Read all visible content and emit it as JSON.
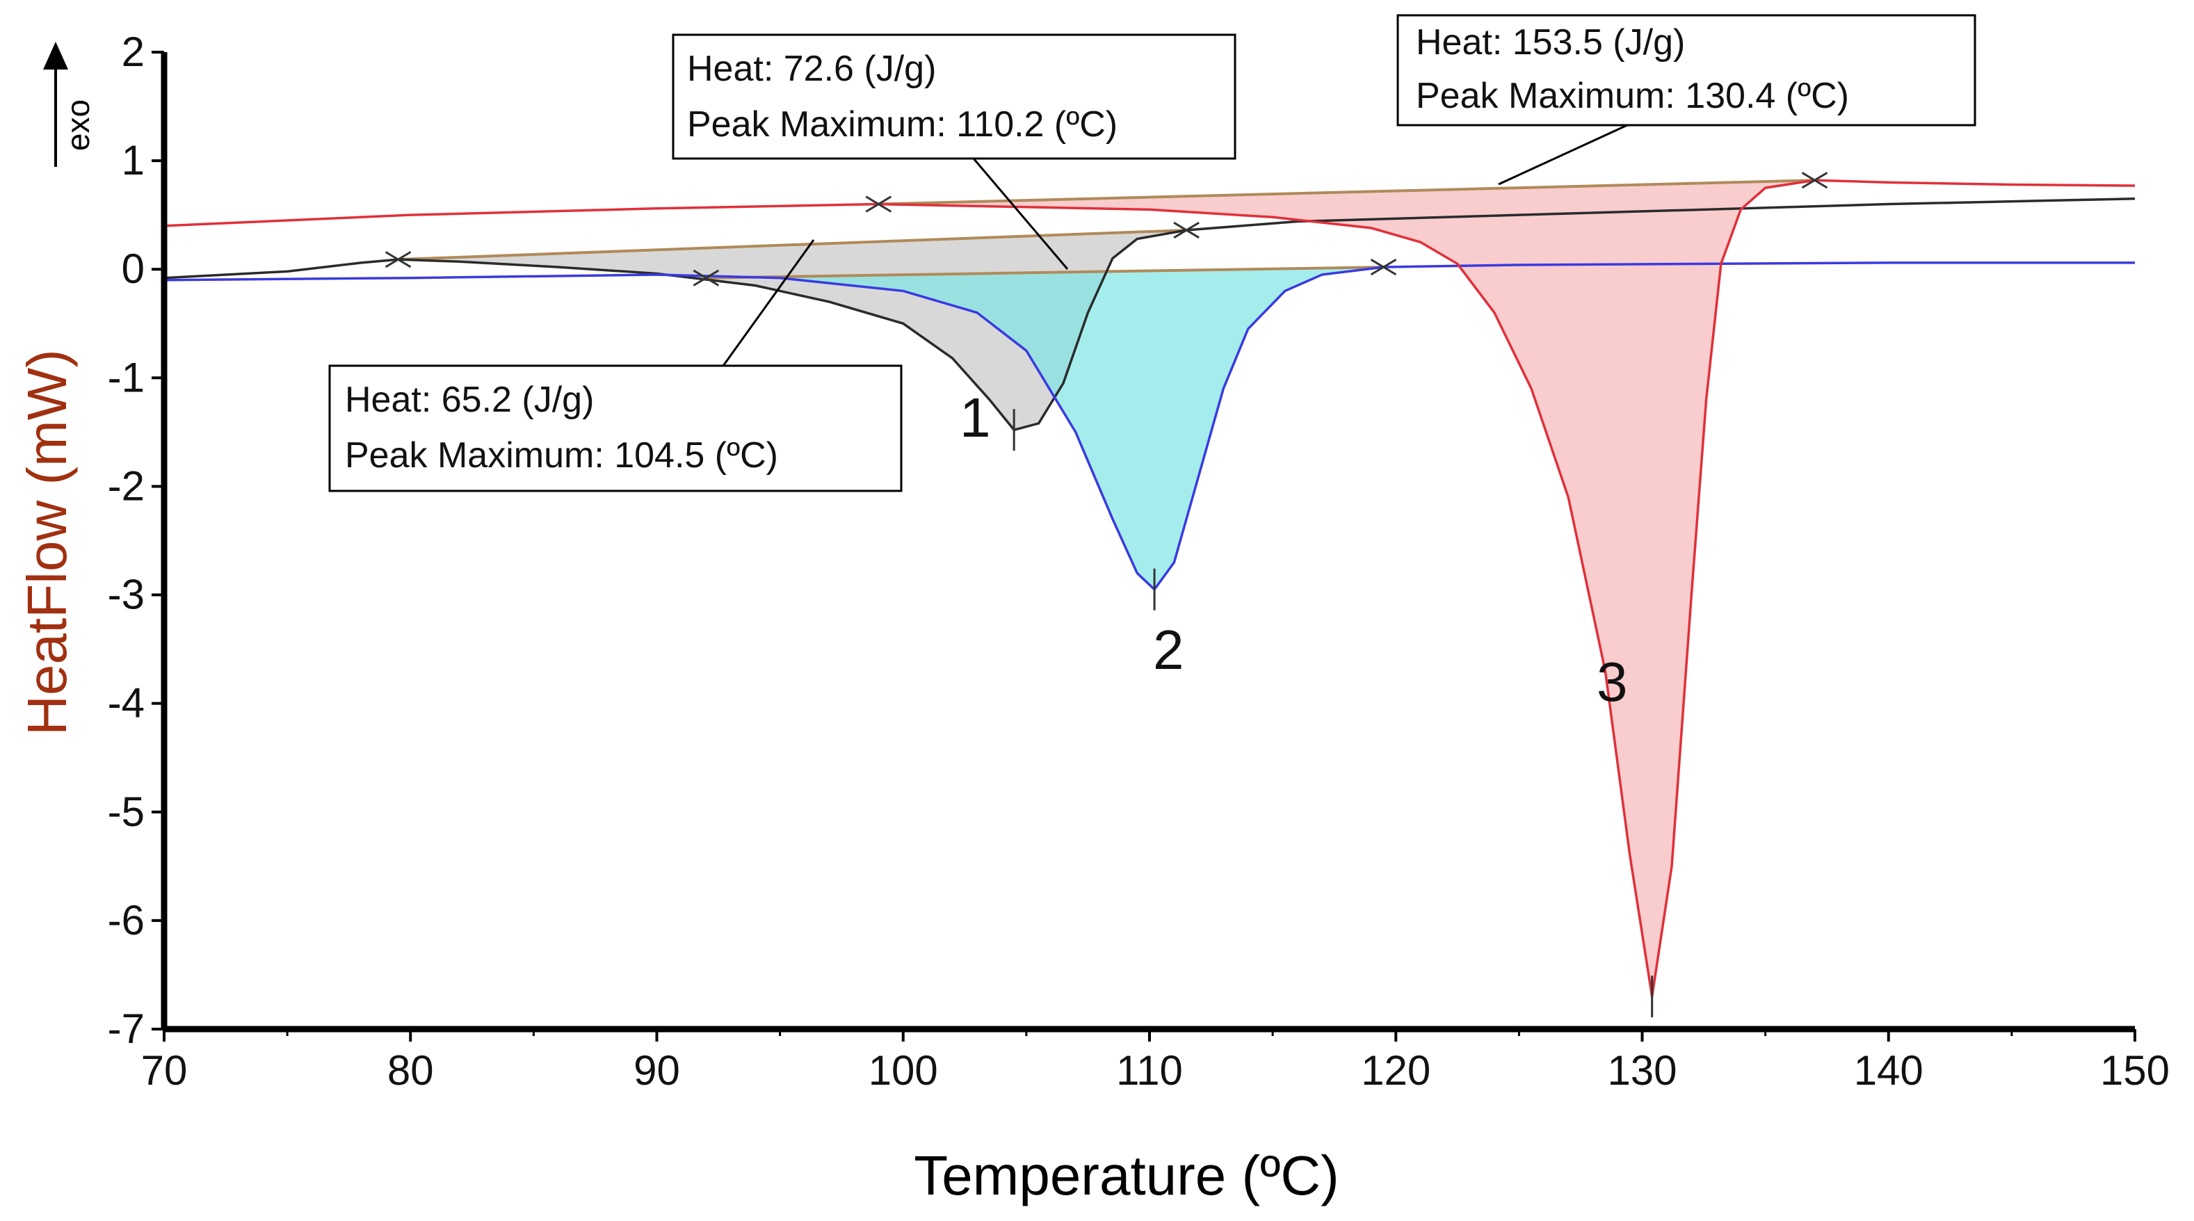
{
  "chart_data": {
    "type": "line",
    "title": "",
    "xlabel": "Temperature (ºC)",
    "ylabel": "HeatFlow (mW)",
    "exo_label": "exo",
    "xlim": [
      70,
      150
    ],
    "ylim": [
      -7,
      2
    ],
    "xticks": [
      70,
      80,
      90,
      100,
      110,
      120,
      130,
      140,
      150
    ],
    "yticks": [
      2,
      1,
      0,
      -1,
      -2,
      -3,
      -4,
      -5,
      -6,
      -7
    ],
    "series": [
      {
        "name": "1",
        "color": "#2b2b2b",
        "fill": "#c8c8c8",
        "points": [
          [
            70,
            -0.08
          ],
          [
            75,
            -0.02
          ],
          [
            78,
            0.06
          ],
          [
            79.5,
            0.09
          ],
          [
            82,
            0.07
          ],
          [
            86,
            0.02
          ],
          [
            90,
            -0.04
          ],
          [
            94,
            -0.15
          ],
          [
            97,
            -0.3
          ],
          [
            100,
            -0.5
          ],
          [
            102,
            -0.82
          ],
          [
            103.5,
            -1.2
          ],
          [
            104.5,
            -1.48
          ],
          [
            105.5,
            -1.42
          ],
          [
            106.5,
            -1.05
          ],
          [
            107.5,
            -0.4
          ],
          [
            108.5,
            0.1
          ],
          [
            109.5,
            0.28
          ],
          [
            111.5,
            0.36
          ],
          [
            116,
            0.44
          ],
          [
            125,
            0.5
          ],
          [
            140,
            0.6
          ],
          [
            150,
            0.65
          ]
        ],
        "baseline": [
          [
            79.5,
            0.09
          ],
          [
            111.5,
            0.36
          ]
        ],
        "peak": {
          "x": 104.5,
          "y": -1.48,
          "label": "1"
        },
        "annotation": {
          "heat": "Heat: 65.2 (J/g)",
          "peak_max": "Peak Maximum: 104.5 (ºC)"
        }
      },
      {
        "name": "2",
        "color": "#3a3ae0",
        "fill": "#7fe5e5",
        "points": [
          [
            70,
            -0.1
          ],
          [
            80,
            -0.08
          ],
          [
            90,
            -0.05
          ],
          [
            95,
            -0.08
          ],
          [
            100,
            -0.2
          ],
          [
            103,
            -0.4
          ],
          [
            105,
            -0.75
          ],
          [
            107,
            -1.5
          ],
          [
            108.5,
            -2.3
          ],
          [
            109.5,
            -2.8
          ],
          [
            110.2,
            -2.95
          ],
          [
            111,
            -2.7
          ],
          [
            112,
            -1.9
          ],
          [
            113,
            -1.1
          ],
          [
            114,
            -0.55
          ],
          [
            115.5,
            -0.2
          ],
          [
            117,
            -0.05
          ],
          [
            119.5,
            0.02
          ],
          [
            125,
            0.04
          ],
          [
            140,
            0.06
          ],
          [
            150,
            0.06
          ]
        ],
        "baseline": [
          [
            92,
            -0.08
          ],
          [
            119.5,
            0.02
          ]
        ],
        "peak": {
          "x": 110.2,
          "y": -2.95,
          "label": "2"
        },
        "annotation": {
          "heat": "Heat: 72.6 (J/g)",
          "peak_max": "Peak Maximum: 110.2 (ºC)"
        }
      },
      {
        "name": "3",
        "color": "#e0303a",
        "fill": "#f6b8b8",
        "points": [
          [
            70,
            0.4
          ],
          [
            80,
            0.5
          ],
          [
            90,
            0.56
          ],
          [
            99,
            0.6
          ],
          [
            110,
            0.55
          ],
          [
            115,
            0.48
          ],
          [
            119,
            0.38
          ],
          [
            121,
            0.25
          ],
          [
            122.5,
            0.05
          ],
          [
            124,
            -0.4
          ],
          [
            125.5,
            -1.1
          ],
          [
            127,
            -2.1
          ],
          [
            128.5,
            -3.7
          ],
          [
            129.5,
            -5.4
          ],
          [
            130.4,
            -6.7
          ],
          [
            131.2,
            -5.5
          ],
          [
            132,
            -3.0
          ],
          [
            132.6,
            -1.2
          ],
          [
            133.2,
            0.05
          ],
          [
            134,
            0.55
          ],
          [
            135,
            0.75
          ],
          [
            137,
            0.82
          ],
          [
            140,
            0.8
          ],
          [
            145,
            0.78
          ],
          [
            150,
            0.77
          ]
        ],
        "baseline": [
          [
            99,
            0.6
          ],
          [
            137,
            0.82
          ]
        ],
        "peak": {
          "x": 130.4,
          "y": -6.7,
          "label": "3"
        },
        "annotation": {
          "heat": "Heat: 153.5 (J/g)",
          "peak_max": "Peak Maximum: 130.4 (ºC)"
        }
      }
    ]
  }
}
